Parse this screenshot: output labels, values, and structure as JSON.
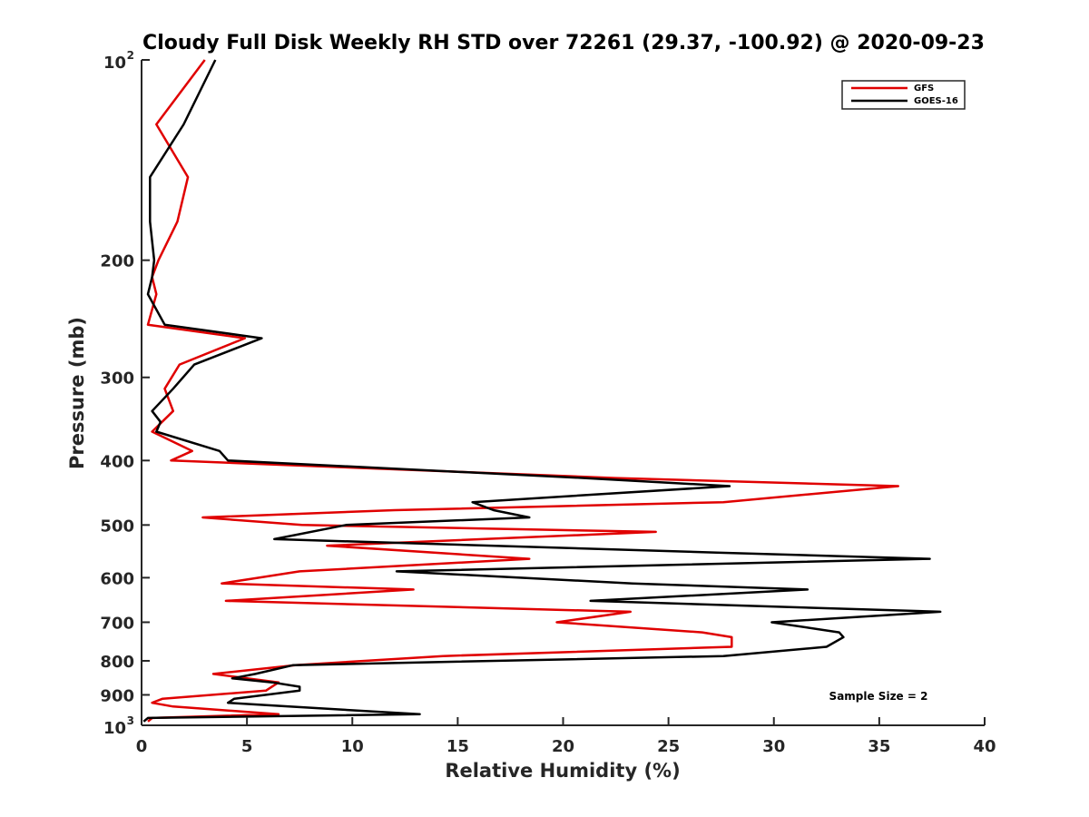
{
  "chart_data": {
    "type": "line",
    "title": "Cloudy Full Disk Weekly RH STD over 72261 (29.37, -100.92) @ 2020-09-23",
    "xlabel": "Relative Humidity (%)",
    "ylabel": "Pressure (mb)",
    "xlim": [
      0,
      40
    ],
    "ylim": [
      100,
      1000
    ],
    "y_scale": "log",
    "y_reversed": true,
    "grid": false,
    "legend_position": "top-right",
    "x_ticks": [
      "0",
      "5",
      "10",
      "15",
      "20",
      "25",
      "30",
      "35",
      "40"
    ],
    "y_ticks": [
      {
        "value": 100,
        "label": "10",
        "sup": "2"
      },
      {
        "value": 200,
        "label": "200",
        "sup": ""
      },
      {
        "value": 300,
        "label": "300",
        "sup": ""
      },
      {
        "value": 400,
        "label": "400",
        "sup": ""
      },
      {
        "value": 500,
        "label": "500",
        "sup": ""
      },
      {
        "value": 600,
        "label": "600",
        "sup": ""
      },
      {
        "value": 700,
        "label": "700",
        "sup": ""
      },
      {
        "value": 800,
        "label": "800",
        "sup": ""
      },
      {
        "value": 900,
        "label": "900",
        "sup": ""
      },
      {
        "value": 1000,
        "label": "10",
        "sup": "3"
      }
    ],
    "annotation": "Sample Size = 2",
    "series": [
      {
        "name": "GFS",
        "color": "#e00000",
        "points": [
          [
            3.0,
            100
          ],
          [
            0.7,
            125
          ],
          [
            2.2,
            150
          ],
          [
            1.7,
            175
          ],
          [
            0.8,
            200
          ],
          [
            0.5,
            212
          ],
          [
            0.7,
            225
          ],
          [
            0.3,
            250
          ],
          [
            4.9,
            262
          ],
          [
            1.8,
            287
          ],
          [
            1.1,
            312
          ],
          [
            1.5,
            337
          ],
          [
            0.5,
            362
          ],
          [
            2.4,
            387
          ],
          [
            1.4,
            400
          ],
          [
            22.5,
            425
          ],
          [
            35.9,
            437
          ],
          [
            27.6,
            462
          ],
          [
            12.0,
            475
          ],
          [
            2.9,
            487
          ],
          [
            7.6,
            500
          ],
          [
            24.4,
            512
          ],
          [
            8.8,
            537
          ],
          [
            18.4,
            562
          ],
          [
            7.5,
            587
          ],
          [
            3.8,
            612
          ],
          [
            12.9,
            625
          ],
          [
            4.0,
            650
          ],
          [
            23.2,
            675
          ],
          [
            19.7,
            700
          ],
          [
            26.6,
            725
          ],
          [
            28.0,
            737
          ],
          [
            28.0,
            762
          ],
          [
            14.3,
            787
          ],
          [
            7.3,
            812
          ],
          [
            3.4,
            837
          ],
          [
            6.5,
            862
          ],
          [
            5.9,
            887
          ],
          [
            1.0,
            912
          ],
          [
            0.5,
            925
          ],
          [
            1.5,
            937
          ],
          [
            6.5,
            962
          ],
          [
            0.5,
            975
          ],
          [
            0.3,
            987
          ]
        ]
      },
      {
        "name": "GOES-16",
        "color": "#000000",
        "points": [
          [
            3.5,
            100
          ],
          [
            2.0,
            125
          ],
          [
            0.4,
            150
          ],
          [
            0.4,
            175
          ],
          [
            0.6,
            200
          ],
          [
            0.5,
            212
          ],
          [
            0.3,
            225
          ],
          [
            1.1,
            250
          ],
          [
            5.7,
            262
          ],
          [
            2.5,
            287
          ],
          [
            1.5,
            312
          ],
          [
            0.5,
            337
          ],
          [
            0.9,
            350
          ],
          [
            0.7,
            362
          ],
          [
            3.7,
            387
          ],
          [
            4.1,
            400
          ],
          [
            21.0,
            425
          ],
          [
            27.9,
            437
          ],
          [
            15.7,
            462
          ],
          [
            16.7,
            475
          ],
          [
            18.4,
            487
          ],
          [
            9.7,
            500
          ],
          [
            6.3,
            525
          ],
          [
            27.3,
            550
          ],
          [
            37.4,
            562
          ],
          [
            12.1,
            587
          ],
          [
            23.3,
            612
          ],
          [
            31.6,
            625
          ],
          [
            21.3,
            650
          ],
          [
            37.9,
            675
          ],
          [
            29.9,
            700
          ],
          [
            33.1,
            725
          ],
          [
            33.3,
            737
          ],
          [
            32.5,
            762
          ],
          [
            27.6,
            787
          ],
          [
            7.2,
            812
          ],
          [
            5.4,
            837
          ],
          [
            4.3,
            850
          ],
          [
            6.2,
            862
          ],
          [
            7.5,
            875
          ],
          [
            7.5,
            887
          ],
          [
            4.4,
            912
          ],
          [
            4.1,
            925
          ],
          [
            7.0,
            937
          ],
          [
            13.2,
            962
          ],
          [
            0.3,
            975
          ],
          [
            0.1,
            987
          ]
        ]
      }
    ]
  }
}
